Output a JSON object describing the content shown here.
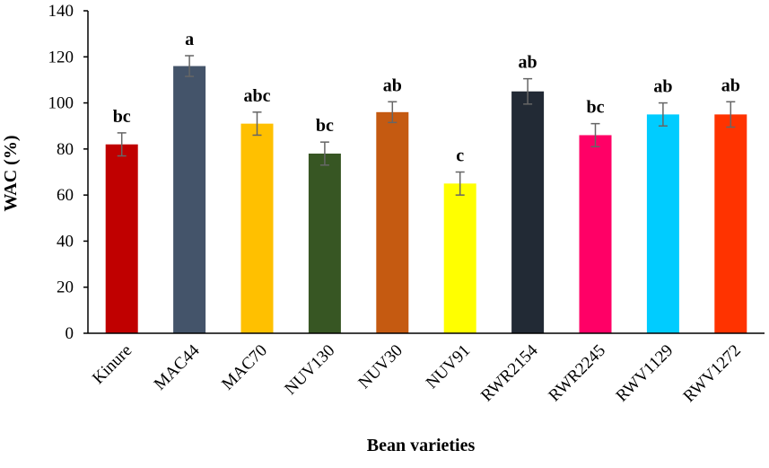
{
  "chart_data": {
    "type": "bar",
    "title": "",
    "xlabel": "Bean varieties",
    "ylabel": "WAC (%)",
    "ylim": [
      0,
      140
    ],
    "yticks": [
      0,
      20,
      40,
      60,
      80,
      100,
      120,
      140
    ],
    "grid": false,
    "legend": "none",
    "categories": [
      "Kinure",
      "MAC44",
      "MAC70",
      "NUV130",
      "NUV30",
      "NUV91",
      "RWR2154",
      "RWR2245",
      "RWV1129",
      "RWV1272"
    ],
    "values": [
      82,
      116,
      91,
      78,
      96,
      65,
      105,
      86,
      95,
      95
    ],
    "errors": [
      5,
      4.5,
      5,
      5,
      4.5,
      5,
      5.5,
      5,
      5,
      5.5
    ],
    "significance": [
      "bc",
      "a",
      "abc",
      "bc",
      "ab",
      "c",
      "ab",
      "bc",
      "ab",
      "ab"
    ],
    "colors": [
      "#c00000",
      "#44546a",
      "#ffc000",
      "#375623",
      "#c55a11",
      "#ffff00",
      "#222a35",
      "#ff0066",
      "#00ccff",
      "#ff3300"
    ]
  }
}
